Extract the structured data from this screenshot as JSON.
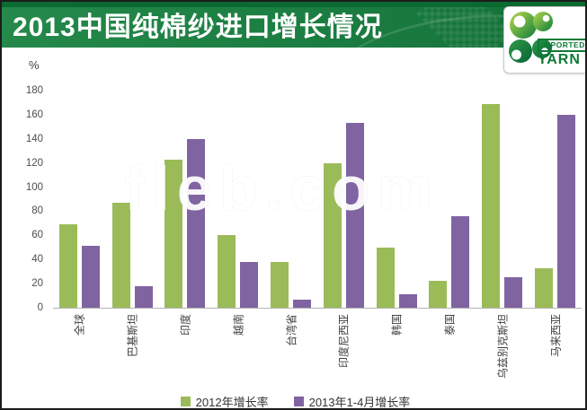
{
  "header": {
    "title": "2013中国纯棉纱进口增长情况",
    "logo": {
      "line1": "IMPORTED",
      "line2": "YARN"
    }
  },
  "watermark": "fleb.com",
  "chart_data": {
    "type": "bar",
    "title": "2013中国纯棉纱进口增长情况",
    "xlabel": "",
    "ylabel": "%",
    "ylim": [
      0,
      180
    ],
    "yticks": [
      0,
      20,
      40,
      60,
      80,
      100,
      120,
      140,
      160,
      180
    ],
    "grid": false,
    "legend_position": "bottom",
    "categories": [
      "全球",
      "巴基斯坦",
      "印度",
      "越南",
      "台湾省",
      "印度尼西亚",
      "韩国",
      "泰国",
      "乌兹别克斯坦",
      "马来西亚"
    ],
    "series": [
      {
        "name": "2012年增长率",
        "color": "#9BBB59",
        "values": [
          69,
          87,
          123,
          60,
          38,
          120,
          50,
          22,
          169,
          33
        ]
      },
      {
        "name": "2013年1-4月增长率",
        "color": "#8064A2",
        "values": [
          51,
          18,
          140,
          38,
          7,
          153,
          11,
          76,
          25,
          160
        ]
      }
    ]
  },
  "colors": {
    "banner_green_dark": "#0b6a31",
    "banner_green": "#1b7d41",
    "bar_green": "#9BBB59",
    "bar_purple": "#8064A2",
    "axis_text": "#4d4d4d",
    "axis_line": "#b3b3b3",
    "logo_green": "#0f7a35"
  }
}
